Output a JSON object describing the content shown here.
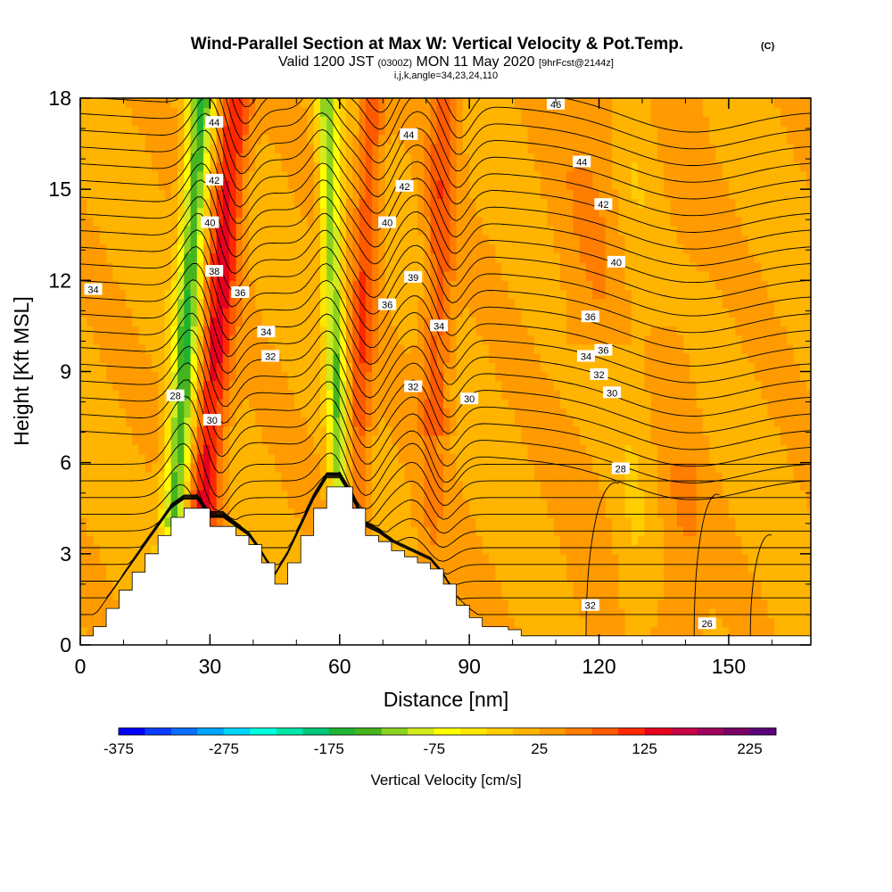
{
  "chart_data": {
    "type": "heatmap",
    "title": "Wind-Parallel Section at Max W: Vertical Velocity & Pot.Temp.",
    "title_mark": "(C)",
    "subtitle_main": "Valid 1200 JST",
    "subtitle_utc": "(0300Z)",
    "subtitle_date": "MON 11 May 2020",
    "subtitle_fcst": "[9hrFcst@2144z]",
    "subtitle2": "i,j,k,angle=34,23,24,110",
    "xlabel": "Distance [nm]",
    "ylabel": "Height [Kft MSL]",
    "xlim": [
      0,
      169
    ],
    "ylim": [
      0,
      18
    ],
    "xticks": [
      0,
      30,
      60,
      90,
      120,
      150
    ],
    "yticks": [
      0,
      3,
      6,
      9,
      12,
      15,
      18
    ],
    "colorbar": {
      "label": "Vertical Velocity [cm/s]",
      "range": [
        -375,
        250
      ],
      "ticks": [
        -375,
        -275,
        -175,
        -75,
        25,
        125,
        225
      ],
      "colors": [
        "#0000ff",
        "#0a3cff",
        "#0a6eff",
        "#00a5ff",
        "#00d7ff",
        "#00ffe0",
        "#00e6a8",
        "#00c878",
        "#1eb432",
        "#46b41e",
        "#8cd21e",
        "#d2eb1e",
        "#ffff00",
        "#ffe600",
        "#ffcd00",
        "#ffb400",
        "#ff9b00",
        "#ff7d00",
        "#ff5a00",
        "#ff2800",
        "#e6001e",
        "#c80046",
        "#a0005a",
        "#780064",
        "#5a0078"
      ]
    },
    "updrafts_cm_s": [
      {
        "x": 31,
        "peak": 130
      },
      {
        "x": 62,
        "peak": 90
      },
      {
        "x": 85,
        "peak": 85
      }
    ],
    "downdrafts_cm_s": [
      {
        "x": 24,
        "peak": -160
      },
      {
        "x": 58,
        "peak": -130
      }
    ],
    "terrain_kft": {
      "x": [
        0,
        3,
        6,
        9,
        12,
        15,
        18,
        21,
        24,
        27,
        30,
        33,
        36,
        39,
        42,
        45,
        48,
        51,
        54,
        57,
        60,
        63,
        66,
        69,
        72,
        75,
        78,
        81,
        84,
        87,
        90,
        93,
        96,
        99,
        102,
        105,
        108,
        111,
        114,
        117,
        120,
        123,
        126,
        129,
        132,
        135,
        138,
        141,
        144,
        147,
        150,
        153,
        156,
        159,
        162,
        165,
        168
      ],
      "h": [
        0.3,
        0.6,
        1.2,
        1.8,
        2.4,
        3.0,
        3.6,
        4.2,
        4.5,
        4.5,
        3.9,
        3.9,
        3.6,
        3.3,
        2.7,
        2.0,
        2.7,
        3.6,
        4.5,
        5.2,
        5.2,
        4.5,
        3.6,
        3.4,
        3.1,
        2.9,
        2.7,
        2.5,
        2.0,
        1.3,
        0.9,
        0.6,
        0.6,
        0.5,
        0.3,
        0.3,
        0.3,
        0.3,
        0.3,
        0.3,
        0.3,
        0.3,
        0.3,
        0.3,
        0.3,
        0.3,
        0.3,
        0.3,
        0.3,
        0.3,
        0.3,
        0.3,
        0.3,
        0.3,
        0.3,
        0.3,
        0.3
      ]
    },
    "theta_labels": [
      "28",
      "30",
      "32",
      "34",
      "36",
      "38",
      "39",
      "40",
      "42",
      "44",
      "46",
      "32",
      "26"
    ]
  }
}
